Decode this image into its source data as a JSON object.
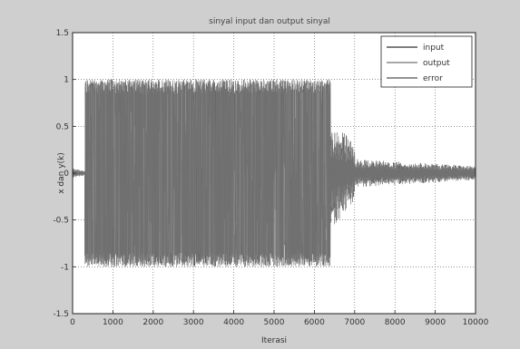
{
  "chart_data": {
    "type": "line",
    "title": "sinyal input dan output sinyal",
    "xlabel": "Iterasi",
    "ylabel": "x dan y(k)",
    "xlim": [
      0,
      10000
    ],
    "ylim": [
      -1.5,
      1.5
    ],
    "xticks": [
      0,
      1000,
      2000,
      3000,
      4000,
      5000,
      6000,
      7000,
      8000,
      9000,
      10000
    ],
    "yticks": [
      -1.5,
      -1,
      -0.5,
      0,
      0.5,
      1,
      1.5
    ],
    "xtick_labels": [
      "0",
      "1000",
      "2000",
      "3000",
      "4000",
      "5000",
      "6000",
      "7000",
      "8000",
      "9000",
      "10000"
    ],
    "ytick_labels": [
      "-1.5",
      "-1",
      "-0.5",
      "0",
      "0.5",
      "1",
      "1.5"
    ],
    "grid": true,
    "legend_position": "top-right",
    "series": [
      {
        "name": "input",
        "color": "#555555",
        "description_values": {
          "segments": [
            {
              "x_start": 0,
              "x_end": 300,
              "amplitude": 0.05
            },
            {
              "x_start": 300,
              "x_end": 6400,
              "amplitude": 1.0,
              "switching": "dense"
            },
            {
              "x_start": 6400,
              "x_end": 7000,
              "amplitude": 0.6
            },
            {
              "x_start": 7000,
              "x_end": 10000,
              "amplitude": 0.15
            }
          ]
        }
      },
      {
        "name": "output",
        "color": "#8a8a8a",
        "description_values": {
          "segments": [
            {
              "x_start": 0,
              "x_end": 300,
              "amplitude": 0.05
            },
            {
              "x_start": 300,
              "x_end": 6400,
              "amplitude": 1.0,
              "switching": "dense"
            },
            {
              "x_start": 6400,
              "x_end": 7000,
              "amplitude": 0.5
            },
            {
              "x_start": 7000,
              "x_end": 10000,
              "amplitude": 0.12
            }
          ]
        }
      },
      {
        "name": "error",
        "color": "#6e6e6e",
        "description_values": {
          "segments": [
            {
              "x_start": 0,
              "x_end": 300,
              "amplitude": 0.03
            },
            {
              "x_start": 300,
              "x_end": 6400,
              "amplitude": 1.0,
              "switching": "dense"
            },
            {
              "x_start": 6400,
              "x_end": 7000,
              "amplitude": 0.4
            },
            {
              "x_start": 7000,
              "x_end": 10000,
              "amplitude": 0.1
            }
          ]
        }
      }
    ]
  },
  "colors": {
    "figure_bg": "#cfcfcf",
    "plot_bg": "#ffffff",
    "axis": "#222222",
    "grid": "#555555"
  }
}
